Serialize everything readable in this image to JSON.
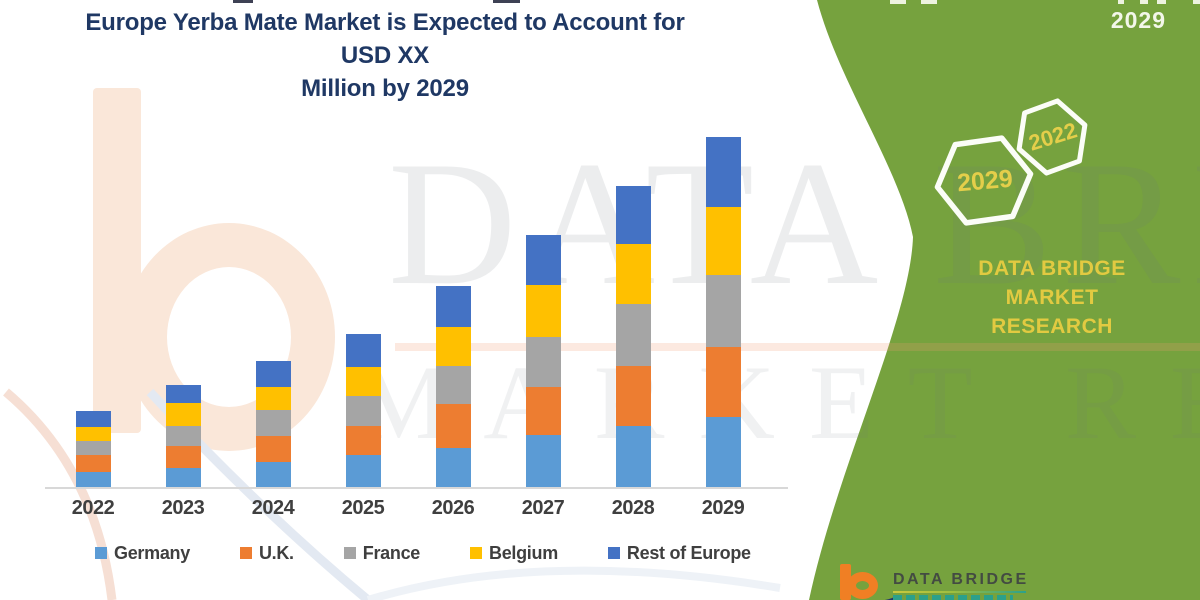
{
  "title": {
    "line1": "Europe Yerba Mate Market is Expected to Account for USD XX",
    "line2": "Million by 2029"
  },
  "side_panel": {
    "top_right_year": "2029",
    "hexagon_near_label": "2029",
    "hexagon_far_label": "2022",
    "brand_line1": "DATA BRIDGE MARKET",
    "brand_line2": "RESEARCH",
    "green_color": "#76A23E",
    "accent_yellow": "#E2CA41"
  },
  "watermark": {
    "line1": "DATA BRIDGE",
    "line2": "MARKET RESEARCH"
  },
  "footer_logo": {
    "text": "DATA BRIDGE"
  },
  "chart_data": {
    "type": "bar",
    "stacked": true,
    "title": "Europe Yerba Mate Market is Expected to Account for USD XX Million by 2029",
    "categories": [
      "2022",
      "2023",
      "2024",
      "2025",
      "2026",
      "2027",
      "2028",
      "2029"
    ],
    "series": [
      {
        "name": "Germany",
        "color": "#5B9BD5",
        "values": [
          15,
          19,
          25,
          32,
          39,
          52,
          61,
          70
        ]
      },
      {
        "name": "U.K.",
        "color": "#ED7D31",
        "values": [
          17,
          22,
          26,
          29,
          44,
          48,
          60,
          70
        ]
      },
      {
        "name": "France",
        "color": "#A5A5A5",
        "values": [
          14,
          20,
          26,
          30,
          38,
          50,
          62,
          72
        ]
      },
      {
        "name": "Belgium",
        "color": "#FFC000",
        "values": [
          14,
          23,
          23,
          29,
          39,
          52,
          60,
          68
        ]
      },
      {
        "name": "Rest of Europe",
        "color": "#4472C4",
        "values": [
          16,
          18,
          26,
          33,
          41,
          50,
          58,
          70
        ]
      }
    ],
    "stack_order_bottom_to_top": [
      "Germany",
      "U.K.",
      "France",
      "Belgium",
      "Rest of Europe"
    ],
    "value_axis_visible": false,
    "units": "relative units (USD XX Million, value undisclosed)",
    "grid": false,
    "legend_position": "bottom"
  }
}
